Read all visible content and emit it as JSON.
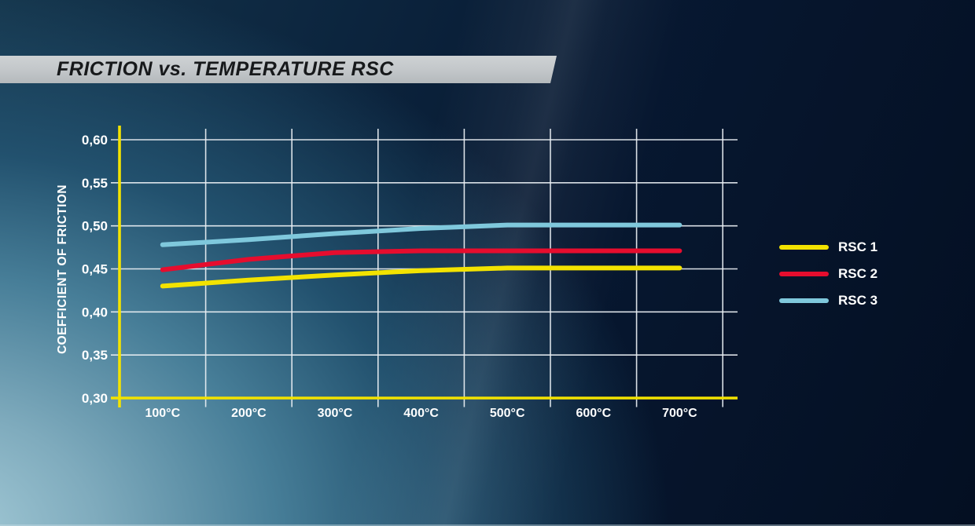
{
  "header": {
    "title": "FRICTION vs. TEMPERATURE RSC"
  },
  "colors": {
    "background_dark": "#040f22",
    "background_light": "#a7cdd9",
    "banner_gray": "#c2c6c9",
    "axis_yellow": "#f3e300",
    "grid_white": "#e9eff3",
    "label_white": "#ffffff",
    "title_text": "#17191b"
  },
  "chart_data": {
    "type": "line",
    "title": "FRICTION vs. TEMPERATURE RSC",
    "xlabel": "",
    "ylabel": "COEFFICIENT OF FRICTION",
    "x_unit": "°C",
    "categories": [
      100,
      200,
      300,
      400,
      500,
      600,
      700
    ],
    "series": [
      {
        "name": "RSC 1",
        "color": "#f3e300",
        "values": [
          0.43,
          0.437,
          0.443,
          0.448,
          0.451,
          0.451,
          0.451
        ]
      },
      {
        "name": "RSC 2",
        "color": "#e60d2e",
        "values": [
          0.449,
          0.461,
          0.469,
          0.471,
          0.471,
          0.471,
          0.471
        ]
      },
      {
        "name": "RSC 3",
        "color": "#7fc8dc",
        "values": [
          0.478,
          0.484,
          0.491,
          0.497,
          0.501,
          0.501,
          0.501
        ]
      }
    ],
    "ylim": [
      0.3,
      0.6
    ],
    "y_tick_step": 0.05,
    "grid": true,
    "legend_position": "right",
    "y_ticks": [
      {
        "label": "0,60",
        "value": 0.6
      },
      {
        "label": "0,55",
        "value": 0.55
      },
      {
        "label": "0,50",
        "value": 0.5
      },
      {
        "label": "0,45",
        "value": 0.45
      },
      {
        "label": "0,40",
        "value": 0.4
      },
      {
        "label": "0,35",
        "value": 0.35
      },
      {
        "label": "0,30",
        "value": 0.3
      }
    ],
    "x_ticks": [
      {
        "label": "100°C",
        "value": 100
      },
      {
        "label": "200°C",
        "value": 200
      },
      {
        "label": "300°C",
        "value": 300
      },
      {
        "label": "400°C",
        "value": 400
      },
      {
        "label": "500°C",
        "value": 500
      },
      {
        "label": "600°C",
        "value": 600
      },
      {
        "label": "700°C",
        "value": 700
      }
    ]
  }
}
